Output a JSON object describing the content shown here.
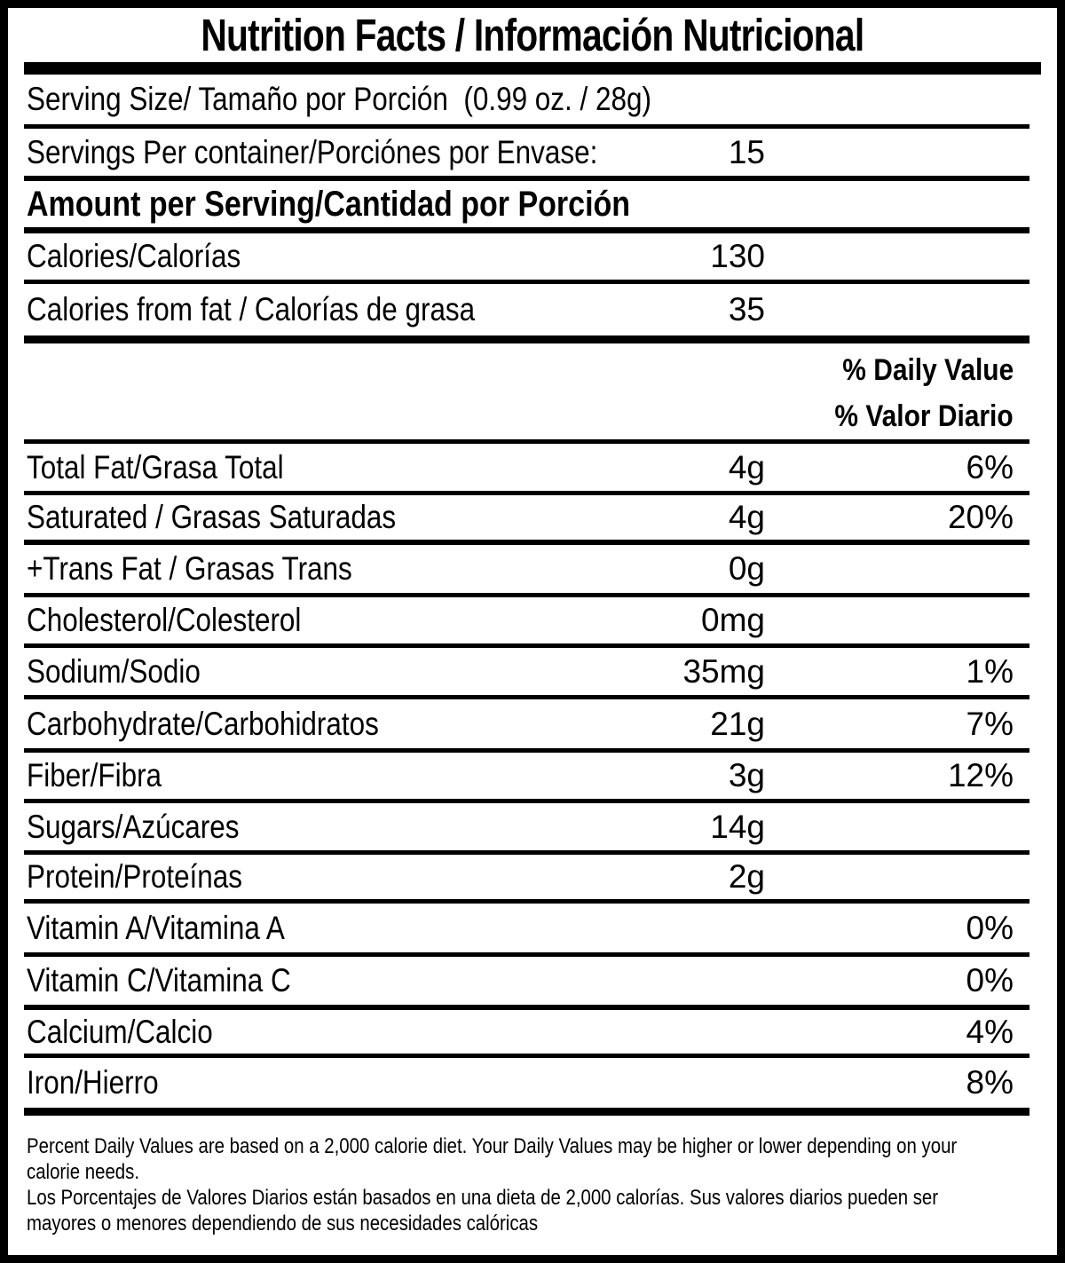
{
  "colors": {
    "ink": "#000000",
    "paper": "#ffffff"
  },
  "title": "Nutrition Facts / Información Nutricional",
  "serving": {
    "serving_size": "Serving Size/ Tamaño por Porción  (0.99 oz. / 28g)",
    "servings_per_container_label": "Servings Per container/Porciónes por Envase:",
    "servings_per_container_value": "15"
  },
  "section_header": "Amount per Serving/Cantidad por Porción",
  "daily_value_header": {
    "en": "% Daily Value",
    "es": "% Valor Diario"
  },
  "rows": [
    {
      "label": "Calories/Calorías",
      "amount": "130",
      "dv": ""
    },
    {
      "label": "Calories from fat / Calorías de grasa",
      "amount": "35",
      "dv": ""
    },
    {
      "label": "Total Fat/Grasa Total",
      "amount": "4g",
      "dv": "6%"
    },
    {
      "label": "Saturated / Grasas Saturadas",
      "amount": "4g",
      "dv": "20%"
    },
    {
      "label": "+Trans Fat / Grasas Trans",
      "amount": "0g",
      "dv": ""
    },
    {
      "label": "Cholesterol/Colesterol",
      "amount": "0mg",
      "dv": ""
    },
    {
      "label": "Sodium/Sodio",
      "amount": "35mg",
      "dv": "1%"
    },
    {
      "label": "Carbohydrate/Carbohidratos",
      "amount": "21g",
      "dv": "7%"
    },
    {
      "label": "Fiber/Fibra",
      "amount": "3g",
      "dv": "12%"
    },
    {
      "label": "Sugars/Azúcares",
      "amount": "14g",
      "dv": ""
    },
    {
      "label": "Protein/Proteínas",
      "amount": "2g",
      "dv": ""
    },
    {
      "label": "Vitamin A/Vitamina A",
      "amount": "",
      "dv": "0%"
    },
    {
      "label": "Vitamin C/Vitamina C",
      "amount": "",
      "dv": "0%"
    },
    {
      "label": "Calcium/Calcio",
      "amount": "",
      "dv": "4%"
    },
    {
      "label": "Iron/Hierro",
      "amount": "",
      "dv": "8%"
    }
  ],
  "footer": {
    "lines": [
      "Percent Daily Values are based on a 2,000 calorie diet. Your Daily Values may be higher or lower depending on your",
      "calorie needs.",
      "Los Porcentajes de Valores Diarios están basados en una dieta de 2,000 calorías. Sus valores diarios pueden ser",
      "mayores o menores dependiendo de sus necesidades calóricas"
    ]
  }
}
